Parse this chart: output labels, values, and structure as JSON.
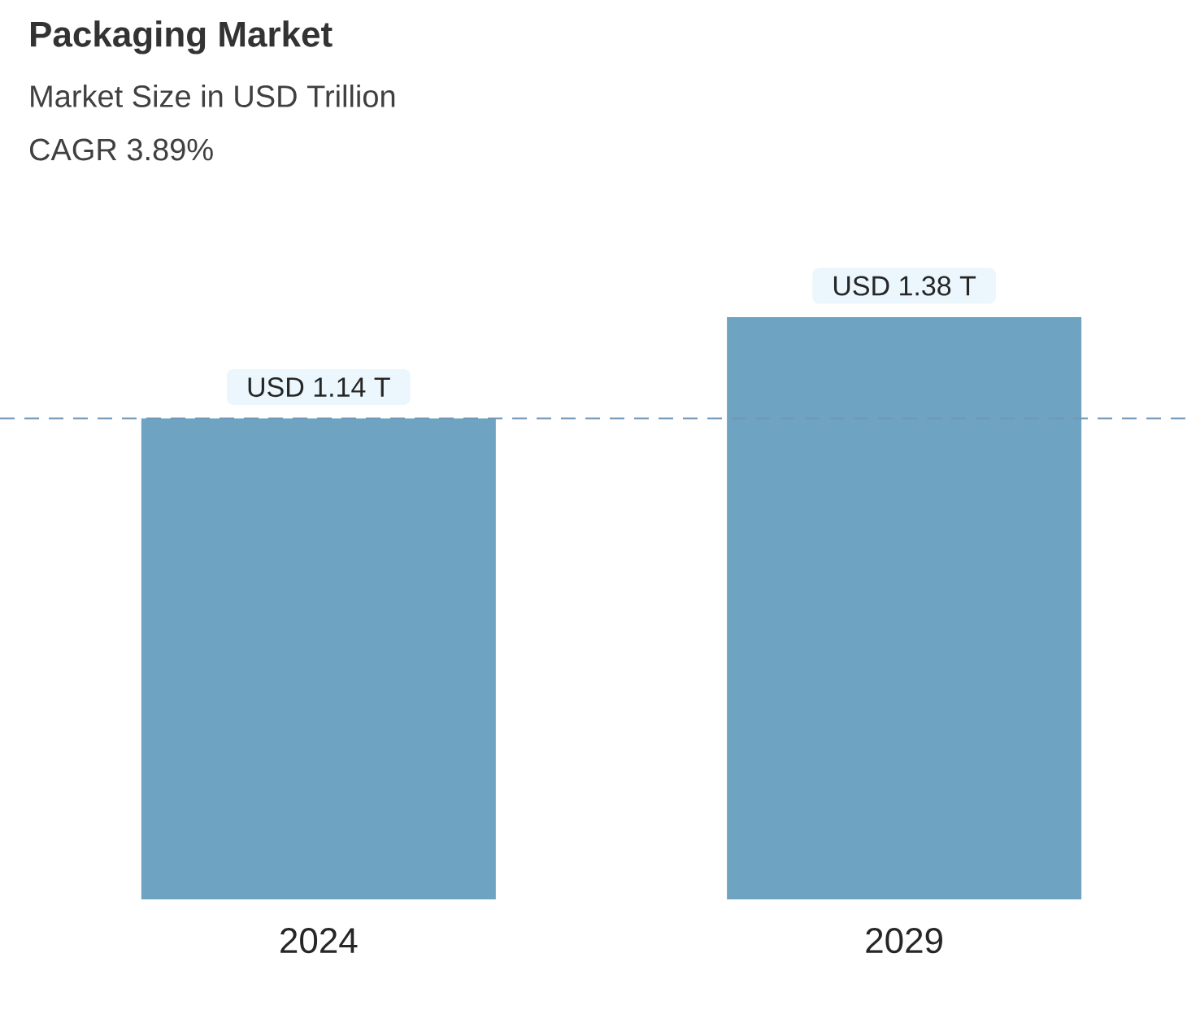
{
  "chart_data": {
    "type": "bar",
    "title": "Packaging Market",
    "subtitle": "Market Size in USD Trillion",
    "annotations": [
      "CAGR 3.89%"
    ],
    "categories": [
      "2024",
      "2029"
    ],
    "values": [
      1.14,
      1.38
    ],
    "color": "#6ea3c1",
    "value_labels": [
      "USD 1.14 T",
      "USD 1.38 T"
    ],
    "ref_lines": [
      {
        "axis": "y",
        "value": 1.14,
        "color": "#6f97b8",
        "line_style": "dashed"
      }
    ],
    "legend": false
  }
}
